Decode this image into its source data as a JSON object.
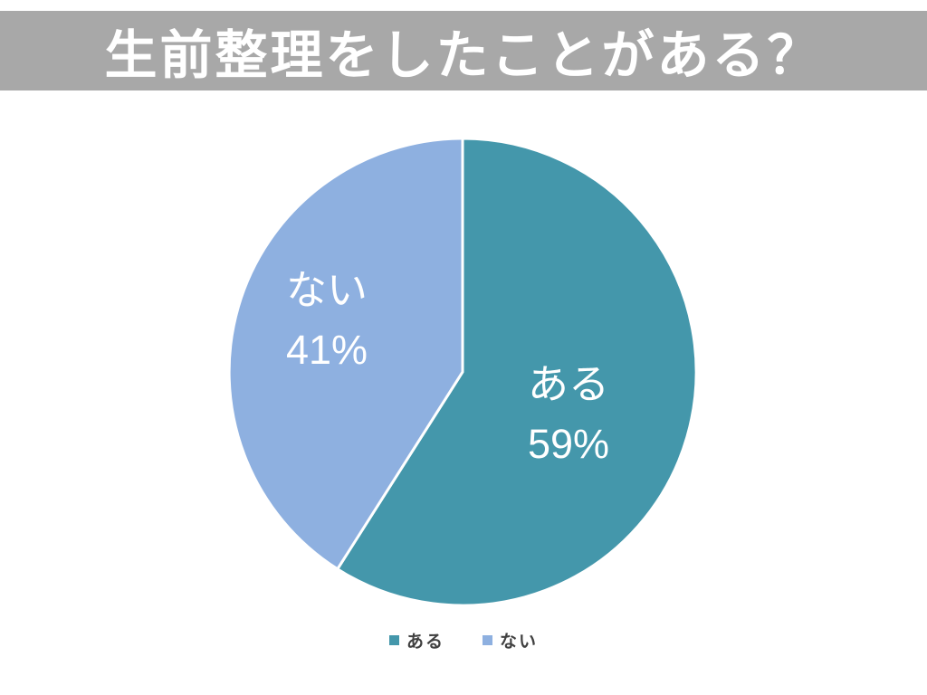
{
  "page": {
    "background": "#FFFFFF"
  },
  "header": {
    "title": "生前整理をしたことがある？",
    "background": "#A8A8A8",
    "text_color": "#FFFFFF"
  },
  "chart_data": {
    "type": "pie",
    "title": "生前整理をしたことがある？",
    "start_angle_deg": 0,
    "direction": "clockwise",
    "slice_border_color": "#FFFFFF",
    "slice_border_width": 3,
    "label_text_color": "#FFFFFF",
    "slices": [
      {
        "label": "ある",
        "value": 59,
        "percent_label": "59%",
        "color": "#4497AB"
      },
      {
        "label": "ない",
        "value": 41,
        "percent_label": "41%",
        "color": "#8EB0E0"
      }
    ],
    "legend": {
      "position": "bottom",
      "entries": [
        "ある",
        "ない"
      ]
    }
  }
}
